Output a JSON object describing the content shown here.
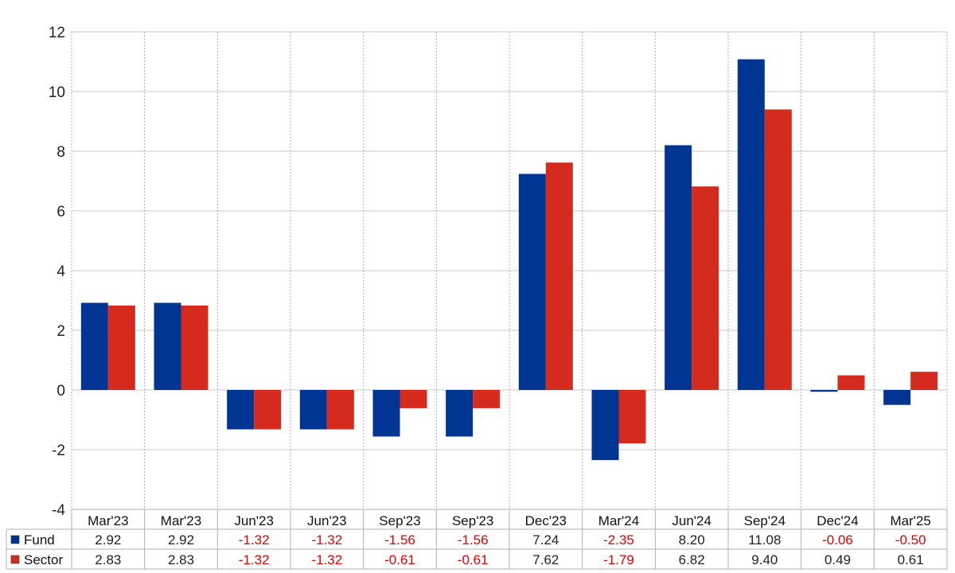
{
  "chart_data": {
    "type": "bar",
    "categories": [
      "Mar'23",
      "Mar'23",
      "Jun'23",
      "Jun'23",
      "Sep'23",
      "Sep'23",
      "Dec'23",
      "Mar'24",
      "Jun'24",
      "Sep'24",
      "Dec'24",
      "Mar'25"
    ],
    "series": [
      {
        "name": "Fund",
        "color": "#003594",
        "values": [
          2.92,
          2.92,
          -1.32,
          -1.32,
          -1.56,
          -1.56,
          7.24,
          -2.35,
          8.2,
          11.08,
          -0.06,
          -0.5
        ],
        "labels": [
          "2.92",
          "2.92",
          "-1.32",
          "-1.32",
          "-1.56",
          "-1.56",
          "7.24",
          "-2.35",
          "8.20",
          "11.08",
          "-0.06",
          "-0.50"
        ]
      },
      {
        "name": "Sector",
        "color": "#d52b1e",
        "values": [
          2.83,
          2.83,
          -1.32,
          -1.32,
          -0.61,
          -0.61,
          7.62,
          -1.79,
          6.82,
          9.4,
          0.49,
          0.61
        ],
        "labels": [
          "2.83",
          "2.83",
          "-1.32",
          "-1.32",
          "-0.61",
          "-0.61",
          "7.62",
          "-1.79",
          "6.82",
          "9.40",
          "0.49",
          "0.61"
        ]
      }
    ],
    "y_ticks": [
      "12",
      "10",
      "8",
      "6",
      "4",
      "2",
      "0",
      "-2",
      "-4"
    ],
    "ylim": [
      -4,
      12
    ],
    "grid": true,
    "negative_value_color": "#e60000",
    "positive_value_color": "#222222",
    "table_below": true
  }
}
